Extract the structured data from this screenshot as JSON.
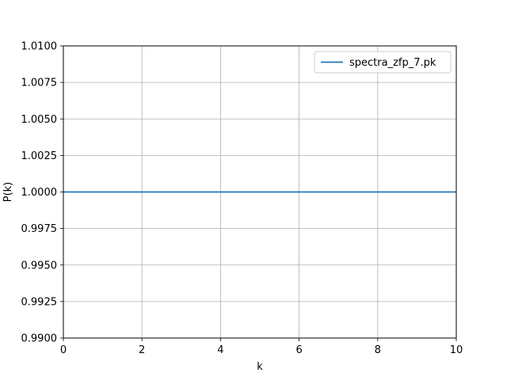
{
  "chart_data": {
    "type": "line",
    "xlabel": "k",
    "ylabel": "P(k)",
    "xlim": [
      0,
      10
    ],
    "ylim": [
      0.99,
      1.01
    ],
    "x_ticks": [
      0,
      2,
      4,
      6,
      8,
      10
    ],
    "x_tick_labels": [
      "0",
      "2",
      "4",
      "6",
      "8",
      "10"
    ],
    "y_ticks": [
      0.99,
      0.9925,
      0.995,
      0.9975,
      1.0,
      1.0025,
      1.005,
      1.0075,
      1.01
    ],
    "y_tick_labels": [
      "0.9900",
      "0.9925",
      "0.9950",
      "0.9975",
      "1.0000",
      "1.0025",
      "1.0050",
      "1.0075",
      "1.0100"
    ],
    "grid": true,
    "legend_position": "top-right",
    "series": [
      {
        "name": "spectra_zfp_7.pk",
        "color": "#1f77b4",
        "x": [
          0,
          10
        ],
        "y": [
          1.0,
          1.0
        ]
      }
    ]
  }
}
